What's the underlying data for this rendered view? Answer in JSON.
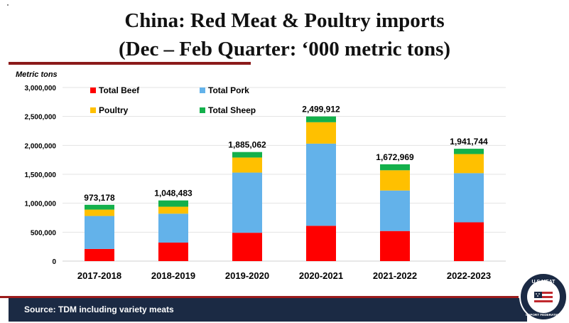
{
  "title_line1": "China: Red Meat & Poultry imports",
  "title_line2": "(Dec – Feb Quarter: ‘000 metric tons)",
  "footer": {
    "source": "Source: TDM including variety meats"
  },
  "logo": {
    "text": "U.S.MEAT EXPORT FEDERATION"
  },
  "colors": {
    "beef": "#ff0000",
    "pork": "#63b2ea",
    "poultry": "#ffc000",
    "sheep": "#13b04b",
    "navy": "#1b2a44",
    "accent_red": "#9b1c1c"
  },
  "chart_data": {
    "type": "bar",
    "stacked": true,
    "ylabel": "Metric tons",
    "ylim": [
      0,
      3000000
    ],
    "y_ticks": [
      0,
      500000,
      1000000,
      1500000,
      2000000,
      2500000,
      3000000
    ],
    "y_tick_labels": [
      "0",
      "500,000",
      "1,000,000",
      "1,500,000",
      "2,000,000",
      "2,500,000",
      "3,000,000"
    ],
    "grid": true,
    "legend_position": "top-left",
    "categories": [
      "2017-2018",
      "2018-2019",
      "2019-2020",
      "2020-2021",
      "2021-2022",
      "2022-2023"
    ],
    "series": [
      {
        "name": "Total Beef",
        "color": "#ff0000",
        "values": [
          210000,
          320000,
          490000,
          610000,
          520000,
          670000
        ]
      },
      {
        "name": "Total Pork",
        "color": "#63b2ea",
        "values": [
          570000,
          500000,
          1040000,
          1420000,
          700000,
          850000
        ]
      },
      {
        "name": "Poultry",
        "color": "#ffc000",
        "values": [
          110000,
          120000,
          260000,
          370000,
          350000,
          330000
        ]
      },
      {
        "name": "Total Sheep",
        "color": "#13b04b",
        "values": [
          83178,
          108483,
          95062,
          99912,
          102969,
          91744
        ]
      }
    ],
    "totals": [
      973178,
      1048483,
      1885062,
      2499912,
      1672969,
      1941744
    ],
    "total_labels": [
      "973,178",
      "1,048,483",
      "1,885,062",
      "2,499,912",
      "1,672,969",
      "1,941,744"
    ]
  }
}
